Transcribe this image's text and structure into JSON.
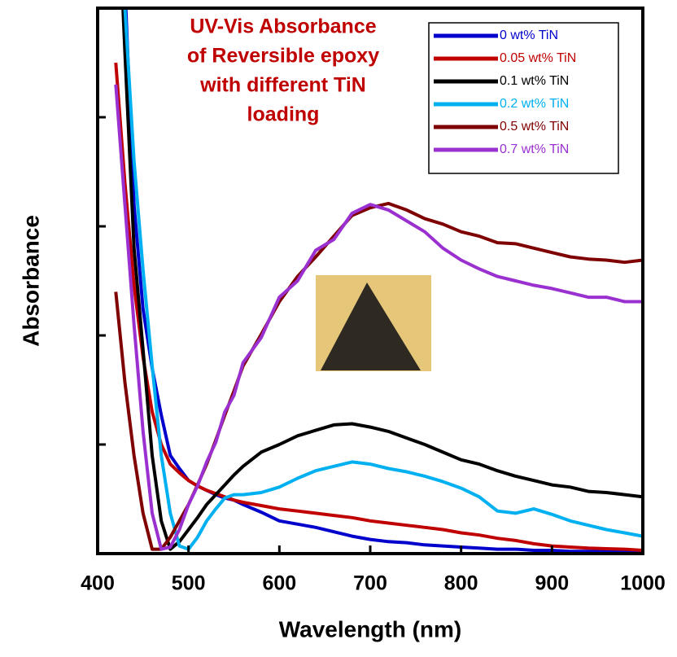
{
  "chart_data": {
    "type": "line",
    "title": [
      "UV-Vis Absorbance",
      "of Reversible epoxy",
      "with different TiN",
      "loading"
    ],
    "x_label": "Wavelength (nm)",
    "y_label": "Absorbance",
    "xlim": [
      400,
      1000
    ],
    "xticks": [
      400,
      500,
      600,
      700,
      800,
      900,
      1000
    ],
    "ylim": [
      0,
      5
    ],
    "yticks": [
      1,
      2,
      3,
      4
    ],
    "x": [
      420,
      430,
      440,
      450,
      460,
      470,
      480,
      490,
      500,
      510,
      520,
      530,
      540,
      550,
      560,
      580,
      600,
      620,
      640,
      660,
      680,
      700,
      720,
      740,
      760,
      780,
      800,
      820,
      840,
      860,
      880,
      900,
      920,
      940,
      960,
      980,
      1000
    ],
    "series": [
      {
        "name": "0 wt% TiN",
        "color": "#0000cc",
        "values": [
          6.5,
          5.2,
          3.2,
          2.24,
          1.7,
          1.27,
          0.9,
          0.78,
          0.67,
          0.62,
          0.58,
          0.54,
          0.51,
          0.49,
          0.45,
          0.38,
          0.3,
          0.27,
          0.24,
          0.2,
          0.16,
          0.13,
          0.11,
          0.1,
          0.08,
          0.07,
          0.06,
          0.05,
          0.04,
          0.04,
          0.03,
          0.03,
          0.02,
          0.02,
          0.02,
          0.02,
          0.02
        ]
      },
      {
        "name": "0.05 wt% TiN",
        "color": "#c00000",
        "values": [
          4.5,
          3.4,
          2.46,
          1.8,
          1.3,
          1.0,
          0.82,
          0.74,
          0.67,
          0.62,
          0.58,
          0.55,
          0.52,
          0.49,
          0.47,
          0.44,
          0.41,
          0.39,
          0.37,
          0.35,
          0.33,
          0.3,
          0.28,
          0.26,
          0.24,
          0.22,
          0.19,
          0.17,
          0.14,
          0.12,
          0.09,
          0.07,
          0.06,
          0.05,
          0.045,
          0.04,
          0.03
        ]
      },
      {
        "name": "0.1 wt% TiN",
        "color": "#000000",
        "values": [
          6.5,
          4.6,
          2.8,
          1.87,
          0.9,
          0.3,
          0.04,
          0.11,
          0.22,
          0.33,
          0.45,
          0.54,
          0.63,
          0.72,
          0.8,
          0.93,
          1.0,
          1.08,
          1.13,
          1.18,
          1.19,
          1.16,
          1.12,
          1.06,
          1.0,
          0.93,
          0.86,
          0.82,
          0.76,
          0.71,
          0.67,
          0.63,
          0.61,
          0.57,
          0.56,
          0.54,
          0.52
        ]
      },
      {
        "name": "0.2 wt% TiN",
        "color": "#00b0f0",
        "values": [
          6.5,
          5.0,
          3.6,
          2.6,
          1.72,
          0.9,
          0.37,
          0.07,
          0.04,
          0.15,
          0.3,
          0.41,
          0.51,
          0.54,
          0.54,
          0.56,
          0.61,
          0.69,
          0.76,
          0.8,
          0.84,
          0.82,
          0.78,
          0.75,
          0.71,
          0.66,
          0.6,
          0.52,
          0.39,
          0.37,
          0.41,
          0.36,
          0.3,
          0.26,
          0.22,
          0.19,
          0.16
        ]
      },
      {
        "name": "0.5 wt% TiN",
        "color": "#7f0000",
        "values": [
          2.4,
          1.57,
          0.9,
          0.37,
          0.04,
          0.04,
          0.15,
          0.3,
          0.45,
          0.63,
          0.82,
          1.04,
          1.27,
          1.49,
          1.72,
          2.01,
          2.31,
          2.54,
          2.72,
          2.91,
          3.1,
          3.17,
          3.21,
          3.15,
          3.07,
          3.02,
          2.95,
          2.91,
          2.85,
          2.84,
          2.8,
          2.76,
          2.72,
          2.7,
          2.69,
          2.67,
          2.69
        ]
      },
      {
        "name": "0.7 wt% TiN",
        "color": "#9b30d0",
        "values": [
          4.3,
          3.2,
          2.1,
          1.12,
          0.37,
          0.04,
          0.06,
          0.22,
          0.45,
          0.62,
          0.84,
          1.02,
          1.3,
          1.45,
          1.75,
          1.98,
          2.35,
          2.5,
          2.78,
          2.88,
          3.12,
          3.2,
          3.15,
          3.05,
          2.95,
          2.8,
          2.69,
          2.61,
          2.54,
          2.5,
          2.46,
          2.43,
          2.39,
          2.35,
          2.35,
          2.31,
          2.31
        ]
      }
    ]
  }
}
